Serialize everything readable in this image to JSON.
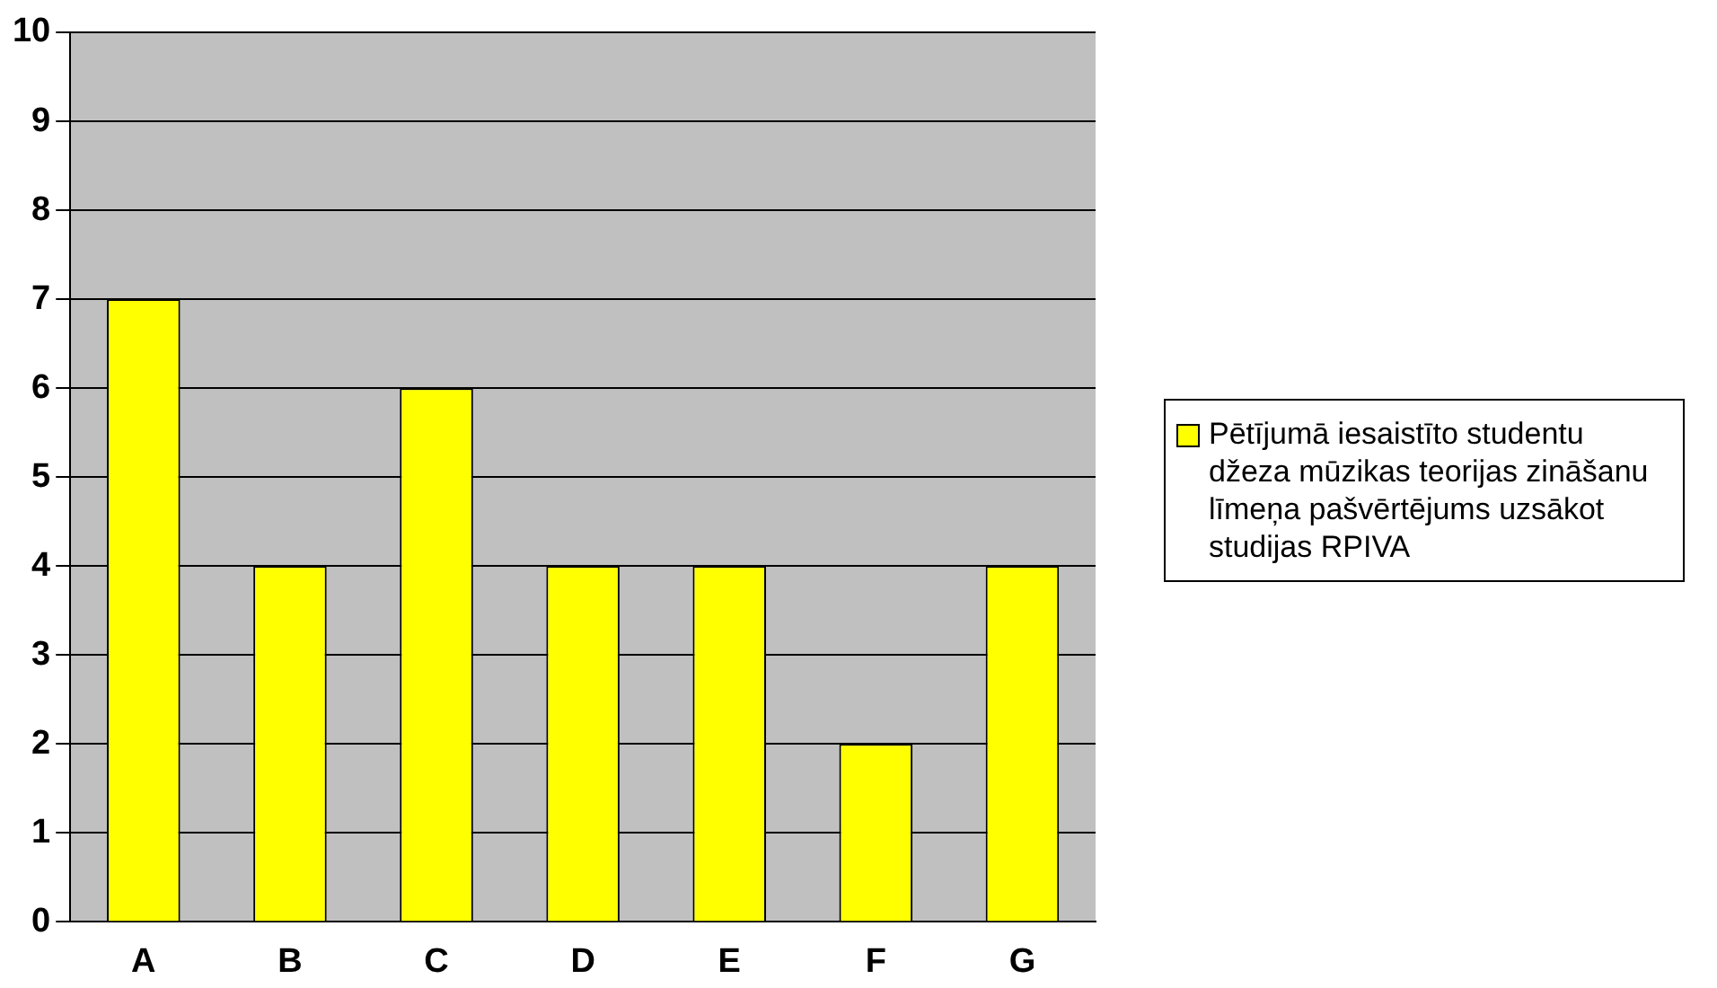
{
  "chart_data": {
    "type": "bar",
    "categories": [
      "A",
      "B",
      "C",
      "D",
      "E",
      "F",
      "G"
    ],
    "series": [
      {
        "name": "Pētījumā iesaistīto studentu džeza mūzikas teorijas zināšanu līmeņa pašvērtējums uzsākot studijas RPIVA",
        "color": "#ffff00",
        "values": [
          7,
          4,
          6,
          4,
          4,
          2,
          4
        ]
      }
    ],
    "ylim": [
      0,
      10
    ],
    "yticks": [
      0,
      1,
      2,
      3,
      4,
      5,
      6,
      7,
      8,
      9,
      10
    ],
    "grid": "y",
    "legend": "right"
  }
}
